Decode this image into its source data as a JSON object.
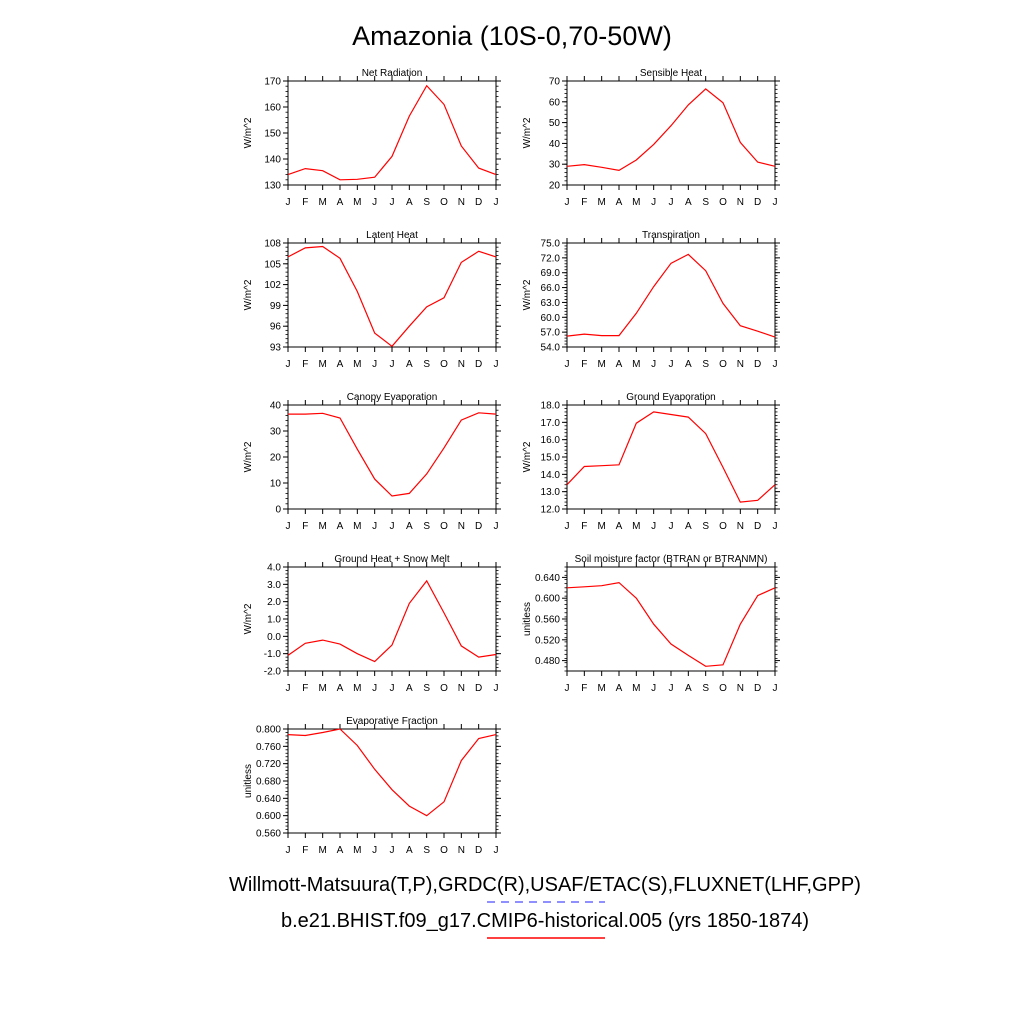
{
  "title": "Amazonia (10S-0,70-50W)",
  "months": [
    "J",
    "F",
    "M",
    "A",
    "M",
    "J",
    "J",
    "A",
    "S",
    "O",
    "N",
    "D",
    "J"
  ],
  "legend": {
    "obs_label": "Willmott-Matsuura(T,P),GRDC(R),USAF/ETAC(S),FLUXNET(LHF,GPP)",
    "obs_color": "#6a6aff",
    "model_label": "b.e21.BHIST.f09_g17.CMIP6-historical.005 (yrs 1850-1874)",
    "model_color": "#ff0000"
  },
  "chart_data": [
    {
      "type": "line",
      "title": "Net Radiation",
      "ylabel": "W/m^2",
      "ylim": [
        130,
        170
      ],
      "yticks": [
        130,
        140,
        150,
        160,
        170
      ],
      "ydecimals": 0,
      "values": [
        134,
        136.3,
        135.5,
        132,
        132.2,
        133,
        141,
        156.5,
        168.2,
        161,
        145,
        136.5,
        134
      ]
    },
    {
      "type": "line",
      "title": "Sensible Heat",
      "ylabel": "W/m^2",
      "ylim": [
        20,
        70
      ],
      "yticks": [
        20,
        30,
        40,
        50,
        60,
        70
      ],
      "ydecimals": 0,
      "values": [
        29,
        29.8,
        28.5,
        27,
        32,
        39.5,
        48.5,
        58.5,
        66.2,
        59.5,
        40.5,
        31,
        29
      ]
    },
    {
      "type": "line",
      "title": "Latent Heat",
      "ylabel": "W/m^2",
      "ylim": [
        93,
        108
      ],
      "yticks": [
        93,
        96,
        99,
        102,
        105,
        108
      ],
      "ydecimals": 0,
      "values": [
        106,
        107.3,
        107.5,
        105.8,
        101,
        95,
        93.1,
        96,
        98.8,
        100.1,
        105.2,
        106.8,
        106
      ]
    },
    {
      "type": "line",
      "title": "Transpiration",
      "ylabel": "W/m^2",
      "ylim": [
        54,
        75
      ],
      "yticks": [
        54,
        57,
        60,
        63,
        66,
        69,
        72,
        75
      ],
      "ydecimals": 1,
      "values": [
        56.2,
        56.6,
        56.3,
        56.3,
        60.8,
        66.2,
        70.9,
        72.7,
        69.4,
        62.8,
        58.3,
        57.2,
        56
      ]
    },
    {
      "type": "line",
      "title": "Canopy Evaporation",
      "ylabel": "W/m^2",
      "ylim": [
        0,
        40
      ],
      "yticks": [
        0,
        10,
        20,
        30,
        40
      ],
      "ydecimals": 0,
      "values": [
        36.5,
        36.5,
        36.8,
        35,
        23,
        11.5,
        5,
        6,
        13.5,
        23.5,
        34.2,
        37,
        36.5
      ]
    },
    {
      "type": "line",
      "title": "Ground Evaporation",
      "ylabel": "W/m^2",
      "ylim": [
        12,
        18
      ],
      "yticks": [
        12,
        13,
        14,
        15,
        16,
        17,
        18
      ],
      "ydecimals": 1,
      "values": [
        13.4,
        14.45,
        14.5,
        14.55,
        16.95,
        17.6,
        17.45,
        17.3,
        16.35,
        14.4,
        12.4,
        12.5,
        13.4
      ]
    },
    {
      "type": "line",
      "title": "Ground Heat + Snow Melt",
      "ylabel": "W/m^2",
      "ylim": [
        -2,
        4
      ],
      "yticks": [
        -2,
        -1,
        0,
        1,
        2,
        3,
        4
      ],
      "ydecimals": 1,
      "values": [
        -1.1,
        -0.4,
        -0.22,
        -0.45,
        -1,
        -1.45,
        -0.5,
        1.9,
        3.2,
        1.35,
        -0.55,
        -1.2,
        -1.05
      ]
    },
    {
      "type": "line",
      "title": "Soil moisture factor (BTRAN or BTRANMN)",
      "ylabel": "unitless",
      "ylim": [
        0.46,
        0.66
      ],
      "yticks": [
        0.48,
        0.52,
        0.56,
        0.6,
        0.64
      ],
      "ydecimals": 3,
      "values": [
        0.62,
        0.622,
        0.624,
        0.63,
        0.6,
        0.55,
        0.512,
        0.49,
        0.469,
        0.472,
        0.55,
        0.605,
        0.62
      ]
    },
    {
      "type": "line",
      "title": "Evaporative Fraction",
      "ylabel": "unitless",
      "ylim": [
        0.56,
        0.8
      ],
      "yticks": [
        0.56,
        0.6,
        0.64,
        0.68,
        0.72,
        0.76,
        0.8
      ],
      "ydecimals": 3,
      "values": [
        0.787,
        0.785,
        0.792,
        0.8,
        0.762,
        0.707,
        0.66,
        0.622,
        0.6,
        0.632,
        0.727,
        0.778,
        0.787
      ]
    }
  ]
}
